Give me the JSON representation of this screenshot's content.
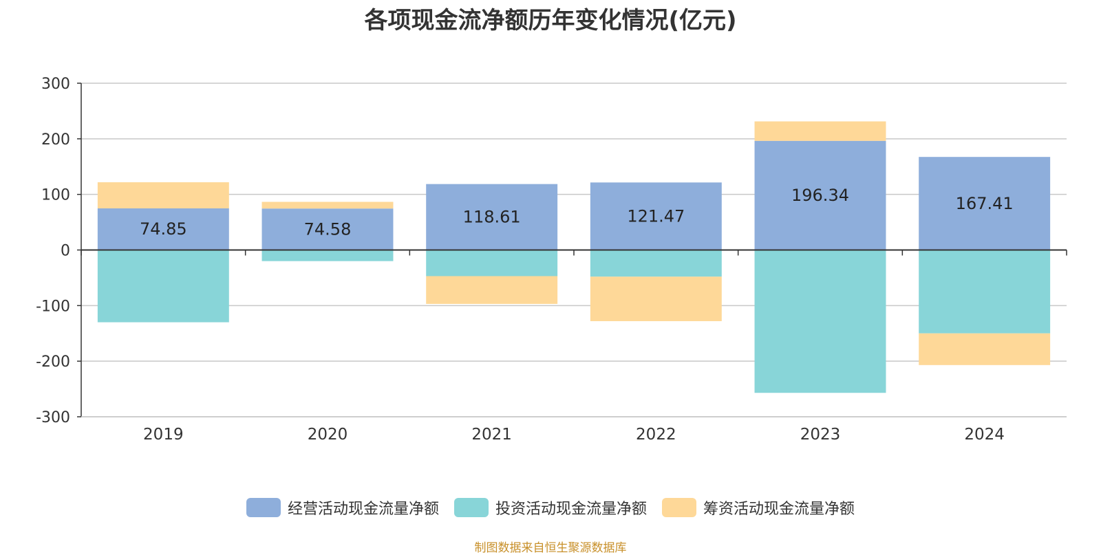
{
  "title": "各项现金流净额历年变化情况(亿元)",
  "source": "制图数据来自恒生聚源数据库",
  "chart_data": {
    "type": "bar",
    "stacked": true,
    "categories": [
      "2019",
      "2020",
      "2021",
      "2022",
      "2023",
      "2024"
    ],
    "ylim": [
      -300,
      300
    ],
    "yticks": [
      300,
      200,
      100,
      0,
      -100,
      -200,
      -300
    ],
    "grid": true,
    "legend_position": "bottom",
    "series": [
      {
        "name": "经营活动现金流量净额",
        "color": "#8eaedb",
        "values": [
          74.85,
          74.58,
          118.61,
          121.47,
          196.34,
          167.41
        ],
        "show_labels": true
      },
      {
        "name": "投资活动现金流量净额",
        "color": "#88d5d8",
        "values": [
          -130,
          -20,
          -47,
          -48,
          -257,
          -150
        ],
        "show_labels": false
      },
      {
        "name": "筹资活动现金流量净额",
        "color": "#fed898",
        "values": [
          47,
          12,
          -50,
          -80,
          35,
          -57
        ],
        "show_labels": false
      }
    ]
  }
}
